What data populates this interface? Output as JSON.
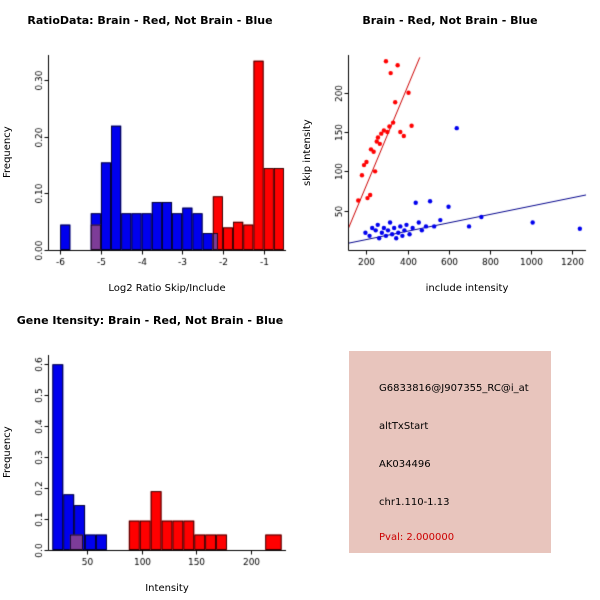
{
  "page": {
    "background": "#ffffff"
  },
  "colors": {
    "red": "#ff0000",
    "blue": "#0000ee",
    "purple": "#7d3c98",
    "line_red": "#cc0000",
    "line_blue": "#00008b",
    "axis": "#000000",
    "info_bg": "#e8c5bd",
    "pval_red": "#cc0000"
  },
  "chart_data": [
    {
      "id": "ratio_histogram",
      "type": "bar",
      "title": "RatioData: Brain - Red, Not Brain - Blue",
      "xlabel": "Log2 Ratio Skip/Include",
      "ylabel": "Frequency",
      "xlim": [
        -6.3,
        -0.45
      ],
      "ylim": [
        0,
        0.345
      ],
      "xticks": [
        -6,
        -5,
        -4,
        -3,
        -2,
        -1
      ],
      "xtick_labels": [
        "-6",
        "-5",
        "-4",
        "-3",
        "-2",
        "-1"
      ],
      "yticks": [
        0,
        0.1,
        0.2,
        0.3
      ],
      "ytick_labels": [
        "0.00",
        "0.10",
        "0.20",
        "0.30"
      ],
      "grid": false,
      "bars": [
        {
          "x0": -6.0,
          "x1": -5.75,
          "h": 0.045,
          "c": "blue"
        },
        {
          "x0": -5.25,
          "x1": -5.0,
          "h": 0.065,
          "c": "blue"
        },
        {
          "x0": -5.0,
          "x1": -4.75,
          "h": 0.155,
          "c": "blue"
        },
        {
          "x0": -4.75,
          "x1": -4.5,
          "h": 0.22,
          "c": "blue"
        },
        {
          "x0": -4.5,
          "x1": -4.25,
          "h": 0.065,
          "c": "blue"
        },
        {
          "x0": -4.25,
          "x1": -4.0,
          "h": 0.065,
          "c": "blue"
        },
        {
          "x0": -4.0,
          "x1": -3.75,
          "h": 0.065,
          "c": "blue"
        },
        {
          "x0": -3.75,
          "x1": -3.5,
          "h": 0.085,
          "c": "blue"
        },
        {
          "x0": -3.5,
          "x1": -3.25,
          "h": 0.085,
          "c": "blue"
        },
        {
          "x0": -3.25,
          "x1": -3.0,
          "h": 0.065,
          "c": "blue"
        },
        {
          "x0": -3.0,
          "x1": -2.75,
          "h": 0.075,
          "c": "blue"
        },
        {
          "x0": -2.75,
          "x1": -2.5,
          "h": 0.065,
          "c": "blue"
        },
        {
          "x0": -2.5,
          "x1": -2.25,
          "h": 0.03,
          "c": "blue"
        },
        {
          "x0": -2.25,
          "x1": -2.0,
          "h": 0.095,
          "c": "red"
        },
        {
          "x0": -2.0,
          "x1": -1.75,
          "h": 0.04,
          "c": "red"
        },
        {
          "x0": -1.75,
          "x1": -1.5,
          "h": 0.05,
          "c": "red"
        },
        {
          "x0": -1.5,
          "x1": -1.25,
          "h": 0.045,
          "c": "red"
        },
        {
          "x0": -1.25,
          "x1": -1.0,
          "h": 0.335,
          "c": "red"
        },
        {
          "x0": -1.0,
          "x1": -0.75,
          "h": 0.145,
          "c": "red"
        },
        {
          "x0": -0.75,
          "x1": -0.5,
          "h": 0.145,
          "c": "red"
        },
        {
          "x0": -5.25,
          "x1": -5.0,
          "h": 0.045,
          "c": "purple"
        },
        {
          "x0": -2.25,
          "x1": -2.125,
          "h": 0.03,
          "c": "purple"
        }
      ]
    },
    {
      "id": "intensity_scatter",
      "type": "scatter",
      "title": "Brain - Red, Not Brain - Blue",
      "xlabel": "include intensity",
      "ylabel": "skip intensity",
      "xlim": [
        110,
        1270
      ],
      "ylim": [
        0,
        248
      ],
      "xticks": [
        200,
        400,
        600,
        800,
        1000,
        1200
      ],
      "xtick_labels": [
        "200",
        "400",
        "600",
        "800",
        "1000",
        "1200"
      ],
      "yticks": [
        50,
        100,
        150,
        200
      ],
      "ytick_labels": [
        "50",
        "100",
        "150",
        "200"
      ],
      "grid": false,
      "lines": [
        {
          "x1": 100,
          "y1": 20,
          "x2": 460,
          "y2": 245,
          "c": "line_red"
        },
        {
          "x1": 100,
          "y1": 8,
          "x2": 1270,
          "y2": 70,
          "c": "line_blue"
        }
      ],
      "series": [
        {
          "name": "Brain",
          "c": "red",
          "points": [
            [
              160,
              63
            ],
            [
              178,
              95
            ],
            [
              188,
              108
            ],
            [
              200,
              112
            ],
            [
              205,
              66
            ],
            [
              218,
              70
            ],
            [
              222,
              128
            ],
            [
              235,
              125
            ],
            [
              242,
              100
            ],
            [
              250,
              138
            ],
            [
              256,
              143
            ],
            [
              265,
              135
            ],
            [
              272,
              148
            ],
            [
              285,
              152
            ],
            [
              295,
              240
            ],
            [
              302,
              150
            ],
            [
              312,
              157
            ],
            [
              318,
              225
            ],
            [
              330,
              162
            ],
            [
              340,
              188
            ],
            [
              352,
              235
            ],
            [
              365,
              150
            ],
            [
              382,
              145
            ],
            [
              405,
              200
            ],
            [
              420,
              158
            ]
          ]
        },
        {
          "name": "Not Brain",
          "c": "blue",
          "points": [
            [
              195,
              22
            ],
            [
              215,
              18
            ],
            [
              228,
              28
            ],
            [
              245,
              25
            ],
            [
              255,
              32
            ],
            [
              262,
              15
            ],
            [
              275,
              22
            ],
            [
              285,
              28
            ],
            [
              295,
              18
            ],
            [
              305,
              25
            ],
            [
              315,
              35
            ],
            [
              325,
              20
            ],
            [
              335,
              28
            ],
            [
              345,
              15
            ],
            [
              355,
              22
            ],
            [
              365,
              30
            ],
            [
              375,
              18
            ],
            [
              385,
              25
            ],
            [
              395,
              32
            ],
            [
              410,
              20
            ],
            [
              425,
              28
            ],
            [
              440,
              60
            ],
            [
              455,
              35
            ],
            [
              470,
              25
            ],
            [
              490,
              30
            ],
            [
              510,
              62
            ],
            [
              530,
              30
            ],
            [
              560,
              38
            ],
            [
              600,
              55
            ],
            [
              640,
              155
            ],
            [
              700,
              30
            ],
            [
              760,
              42
            ],
            [
              1010,
              35
            ],
            [
              1240,
              27
            ]
          ]
        }
      ]
    },
    {
      "id": "gene_intensity_histogram",
      "type": "bar",
      "title": "Gene Itensity: Brain - Red, Not Brain - Blue",
      "xlabel": "Intensity",
      "ylabel": "Frequency",
      "xlim": [
        14,
        232
      ],
      "ylim": [
        0,
        0.63
      ],
      "xticks": [
        50,
        100,
        150,
        200
      ],
      "xtick_labels": [
        "50",
        "100",
        "150",
        "200"
      ],
      "yticks": [
        0,
        0.1,
        0.2,
        0.3,
        0.4,
        0.5,
        0.6
      ],
      "ytick_labels": [
        "0.0",
        "0.1",
        "0.2",
        "0.3",
        "0.4",
        "0.5",
        "0.6"
      ],
      "grid": false,
      "bars": [
        {
          "x0": 18,
          "x1": 28,
          "h": 0.6,
          "c": "blue"
        },
        {
          "x0": 28,
          "x1": 38,
          "h": 0.18,
          "c": "blue"
        },
        {
          "x0": 38,
          "x1": 48,
          "h": 0.145,
          "c": "blue"
        },
        {
          "x0": 48,
          "x1": 58,
          "h": 0.05,
          "c": "blue"
        },
        {
          "x0": 58,
          "x1": 68,
          "h": 0.05,
          "c": "blue"
        },
        {
          "x0": 88,
          "x1": 98,
          "h": 0.095,
          "c": "red"
        },
        {
          "x0": 98,
          "x1": 108,
          "h": 0.095,
          "c": "red"
        },
        {
          "x0": 108,
          "x1": 118,
          "h": 0.19,
          "c": "red"
        },
        {
          "x0": 118,
          "x1": 128,
          "h": 0.095,
          "c": "red"
        },
        {
          "x0": 128,
          "x1": 138,
          "h": 0.095,
          "c": "red"
        },
        {
          "x0": 138,
          "x1": 148,
          "h": 0.095,
          "c": "red"
        },
        {
          "x0": 148,
          "x1": 158,
          "h": 0.05,
          "c": "red"
        },
        {
          "x0": 158,
          "x1": 168,
          "h": 0.05,
          "c": "red"
        },
        {
          "x0": 168,
          "x1": 178,
          "h": 0.05,
          "c": "red"
        },
        {
          "x0": 213,
          "x1": 228,
          "h": 0.05,
          "c": "red"
        },
        {
          "x0": 34,
          "x1": 46,
          "h": 0.05,
          "c": "purple"
        }
      ]
    }
  ],
  "info_panel": {
    "lines": [
      "G6833816@J907355_RC@i_at",
      "altTxStart",
      "AK034496",
      "chr1.110-1.13"
    ],
    "pval": "Pval: 2.000000"
  }
}
